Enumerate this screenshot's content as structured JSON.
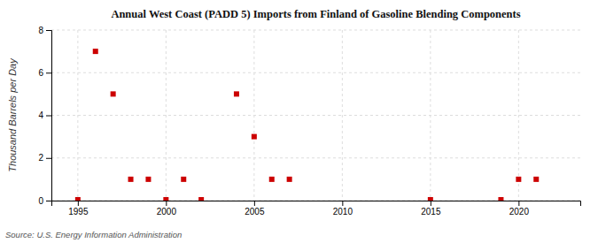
{
  "chart_data": {
    "type": "scatter",
    "title": "Annual West Coast (PADD 5) Imports from Finland of Gasoline Blending Components",
    "y_label": "Thousand Barrels per Day",
    "source": "Source: U.S. Energy Information Administration",
    "x": [
      1995,
      1996,
      1997,
      1998,
      1999,
      2000,
      2001,
      2002,
      2004,
      2005,
      2006,
      2007,
      2015,
      2019,
      2020,
      2021
    ],
    "values": [
      0.04,
      7.0,
      5.0,
      1.0,
      1.0,
      0.04,
      1.0,
      0.04,
      5.0,
      3.0,
      1.0,
      1.0,
      0.04,
      0.04,
      1.0,
      1.0
    ],
    "color": "#cc0000",
    "marker": "square",
    "xlim": [
      1993.5,
      2023.5
    ],
    "ylim": [
      0,
      8
    ],
    "xticks": [
      1995,
      2000,
      2005,
      2010,
      2015,
      2020
    ],
    "yticks": [
      0,
      2,
      4,
      6,
      8
    ],
    "grid": true
  }
}
